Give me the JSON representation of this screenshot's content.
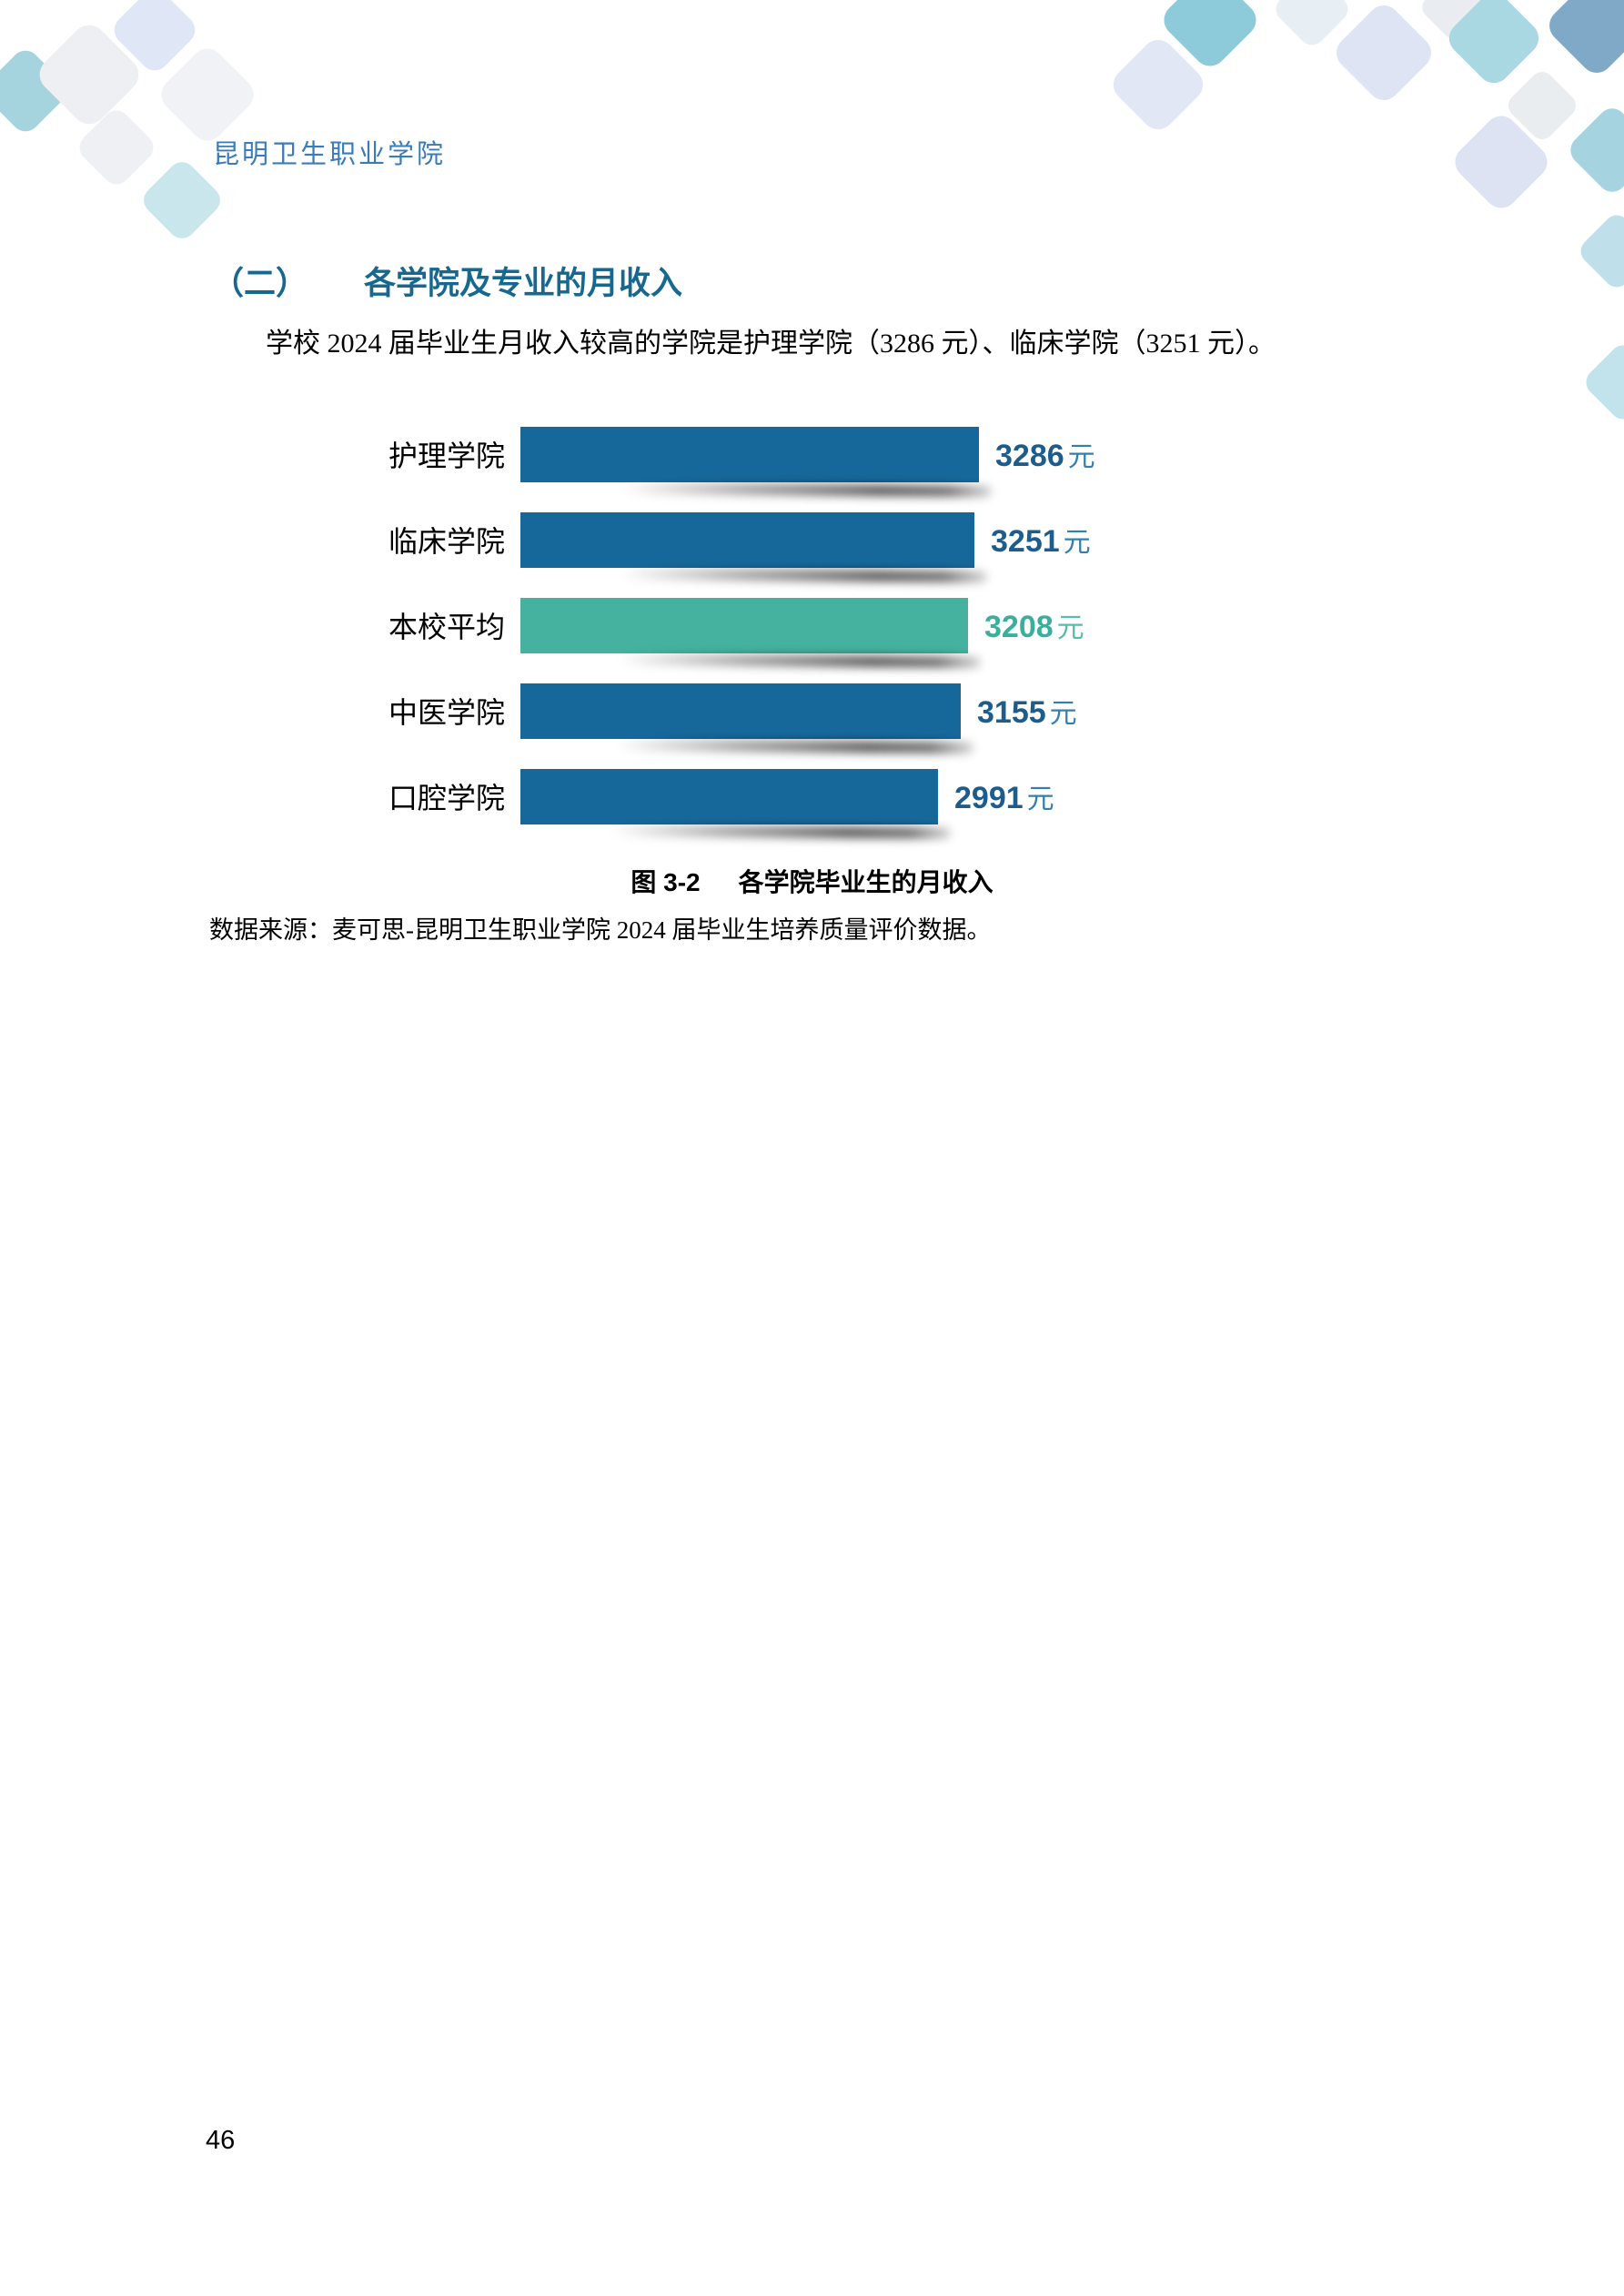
{
  "page": {
    "header": "昆明卫生职业学院",
    "page_number": "46"
  },
  "section": {
    "heading_index": "（二）",
    "heading_title": "各学院及专业的月收入",
    "paragraph": "学校 2024 届毕业生月收入较高的学院是护理学院（3286 元）、临床学院（3251 元）。"
  },
  "chart_data": {
    "type": "bar",
    "orientation": "horizontal",
    "title": "各学院毕业生的月收入",
    "categories": [
      "护理学院",
      "临床学院",
      "本校平均",
      "中医学院",
      "口腔学院"
    ],
    "values": [
      3286,
      3251,
      3208,
      3155,
      2991
    ],
    "unit": "元",
    "xlim": [
      0,
      3286
    ],
    "grid": false,
    "legend": "none",
    "value_labels": "outside-right",
    "highlight_category": "本校平均",
    "bar_colors": [
      "#16689B",
      "#16689B",
      "#44B29E",
      "#16689B",
      "#16689B"
    ],
    "value_num_colors": [
      "#1E5C8C",
      "#1E5C8C",
      "#3AAF9B",
      "#1E5C8C",
      "#1E5C8C"
    ],
    "value_unit_colors": [
      "#3380AD",
      "#3380AD",
      "#57BCA9",
      "#3380AD",
      "#3380AD"
    ]
  },
  "caption": {
    "figure_label": "图 3-2",
    "figure_title": "各学院毕业生的月收入"
  },
  "source_note": "数据来源：麦可思-昆明卫生职业学院 2024 届毕业生培养质量评价数据。",
  "colors": {
    "header_text": "#3A7CB8",
    "heading_text": "#17688E",
    "bar_blue": "#16689B",
    "bar_teal": "#44B29E",
    "shadow": "rgba(0,0,0,0.6)"
  }
}
